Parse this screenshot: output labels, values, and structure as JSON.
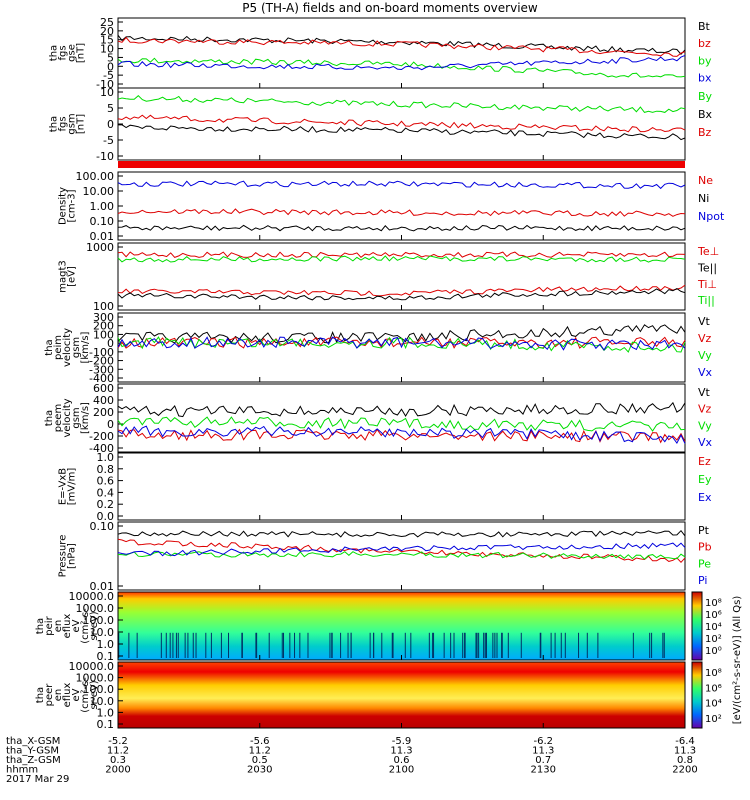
{
  "title": "P5 (TH-A) fields and on-board moments overview",
  "colors": {
    "black": "#000000",
    "red": "#dd0000",
    "green": "#00dd00",
    "blue": "#0000dd"
  },
  "chart_data": [
    {
      "type": "line",
      "panel": "fgs-gse",
      "ylabel": [
        "tha",
        "fgs",
        "gse",
        "[nT]"
      ],
      "yticks": [
        "25",
        "20",
        "15",
        "10",
        "5",
        "0",
        "-5",
        "-10"
      ],
      "ylim": [
        -10,
        25
      ],
      "series": [
        {
          "name": "Bt",
          "color": "black",
          "level": [
            15,
            13,
            8
          ]
        },
        {
          "name": "bz",
          "color": "red",
          "level": [
            14,
            12,
            7
          ]
        },
        {
          "name": "by",
          "color": "green",
          "level": [
            4,
            2,
            -5
          ]
        },
        {
          "name": "bx",
          "color": "blue",
          "level": [
            2,
            0,
            5
          ]
        }
      ]
    },
    {
      "type": "line",
      "panel": "fgs-gsm",
      "ylabel": [
        "tha",
        "fgs",
        "gsm",
        "[nT]"
      ],
      "yticks": [
        "10",
        "5",
        "0",
        "-5",
        "-10"
      ],
      "ylim": [
        -12,
        10
      ],
      "series": [
        {
          "name": "By",
          "color": "green",
          "level": [
            7,
            5,
            3
          ]
        },
        {
          "name": "Bx",
          "color": "black",
          "level": [
            -2,
            -3,
            -5
          ]
        },
        {
          "name": "Bz",
          "color": "red",
          "level": [
            1,
            -1,
            -3
          ]
        }
      ]
    },
    {
      "type": "line",
      "panel": "density",
      "ylabel": [
        "Density",
        "[cm-3]"
      ],
      "yticks": [
        "100.00",
        "10.00",
        "1.00",
        "0.10",
        "0.01"
      ],
      "ylim": [
        0.01,
        100
      ],
      "log": true,
      "series": [
        {
          "name": "Ne",
          "color": "red",
          "level": [
            0.5,
            0.4,
            0.35
          ]
        },
        {
          "name": "Ni",
          "color": "black",
          "level": [
            0.05,
            0.05,
            0.05
          ]
        },
        {
          "name": "Npot",
          "color": "blue",
          "level": [
            20,
            20,
            15
          ]
        }
      ]
    },
    {
      "type": "line",
      "panel": "temperature",
      "ylabel": [
        "magt3",
        "[eV]"
      ],
      "yticks": [
        "1000",
        "100"
      ],
      "ylim": [
        30,
        8000
      ],
      "log": true,
      "series": [
        {
          "name": "Te⊥",
          "color": "red",
          "level": [
            140,
            120,
            200
          ]
        },
        {
          "name": "Te||",
          "color": "black",
          "level": [
            100,
            80,
            150
          ]
        },
        {
          "name": "Ti⊥",
          "color": "red",
          "level": [
            3000,
            3000,
            3000
          ]
        },
        {
          "name": "Ti||",
          "color": "green",
          "level": [
            2000,
            2200,
            2000
          ]
        }
      ]
    },
    {
      "type": "line",
      "panel": "peim-velocity",
      "ylabel": [
        "tha",
        "peim",
        "velocity",
        "gsm",
        "[km/s]"
      ],
      "yticks": [
        "300",
        "200",
        "100",
        "0",
        "-100",
        "-200",
        "-300",
        "-400"
      ],
      "ylim": [
        -400,
        300
      ],
      "series": [
        {
          "name": "Vt",
          "color": "black",
          "level": [
            50,
            50,
            150
          ]
        },
        {
          "name": "Vz",
          "color": "red",
          "level": [
            0,
            0,
            0
          ]
        },
        {
          "name": "Vy",
          "color": "green",
          "level": [
            0,
            0,
            -50
          ]
        },
        {
          "name": "Vx",
          "color": "blue",
          "level": [
            0,
            0,
            -30
          ]
        }
      ]
    },
    {
      "type": "line",
      "panel": "peem-velocity",
      "ylabel": [
        "tha",
        "peem",
        "velocity",
        "gsm",
        "[km/s]"
      ],
      "yticks": [
        "600",
        "400",
        "200",
        "0",
        "-200",
        "-400"
      ],
      "ylim": [
        -400,
        600
      ],
      "series": [
        {
          "name": "Vt",
          "color": "black",
          "level": [
            200,
            200,
            250
          ]
        },
        {
          "name": "Vz",
          "color": "red",
          "level": [
            -150,
            -150,
            -180
          ]
        },
        {
          "name": "Vy",
          "color": "green",
          "level": [
            50,
            20,
            -30
          ]
        },
        {
          "name": "Vx",
          "color": "blue",
          "level": [
            -100,
            -100,
            -200
          ]
        }
      ]
    },
    {
      "type": "line",
      "panel": "efield",
      "ylabel": [
        "E=-VxB",
        "[mV/m]"
      ],
      "yticks": [
        "1.0",
        "0.8",
        "0.6",
        "0.4",
        "0.2",
        "0.0"
      ],
      "ylim": [
        0,
        1
      ],
      "series": [
        {
          "name": "Ez",
          "color": "red",
          "level": []
        },
        {
          "name": "Ey",
          "color": "green",
          "level": []
        },
        {
          "name": "Ex",
          "color": "blue",
          "level": []
        }
      ]
    },
    {
      "type": "line",
      "panel": "pressure",
      "ylabel": [
        "Pressure",
        "[nPa]"
      ],
      "yticks": [
        "0.10",
        "0.01"
      ],
      "ylim": [
        0.008,
        0.5
      ],
      "log": true,
      "series": [
        {
          "name": "Pt",
          "color": "black",
          "level": [
            0.25,
            0.23,
            0.25
          ]
        },
        {
          "name": "Pb",
          "color": "red",
          "level": [
            0.15,
            0.08,
            0.05
          ]
        },
        {
          "name": "Pe",
          "color": "green",
          "level": [
            0.07,
            0.07,
            0.06
          ]
        },
        {
          "name": "Pi",
          "color": "blue",
          "level": [
            0.07,
            0.1,
            0.12
          ]
        }
      ]
    },
    {
      "type": "heatmap",
      "panel": "peir-spectrogram",
      "ylabel": [
        "tha",
        "peir",
        "en",
        "eflux",
        "eV",
        "(cm²-s-",
        "sr-eV)"
      ],
      "yticks": [
        "10000.0",
        "1000.0",
        "100.0",
        "10.0",
        "1.0",
        "0.1"
      ]
    },
    {
      "type": "heatmap",
      "panel": "peer-spectrogram",
      "ylabel": [
        "tha",
        "peer",
        "en",
        "eflux",
        "eV",
        "(cm²-s-",
        "sr-eV)"
      ],
      "yticks": [
        "10000.0",
        "1000.0",
        "100.0",
        "10.0",
        "1.0",
        "0.1"
      ]
    }
  ],
  "colorbar": {
    "ticks_top": [
      "10⁸",
      "10⁶",
      "10⁴",
      "10²",
      "10⁰"
    ],
    "ticks_bottom": [
      "10⁸",
      "10⁶",
      "10⁴",
      "10²"
    ],
    "label": "[eV/(cm²-s-sr-eV)] (All Qs)"
  },
  "ephemeris": {
    "labels": [
      "tha_X-GSM",
      "tha_Y-GSM",
      "tha_Z-GSM",
      "hhmm",
      "2017 Mar 29"
    ],
    "columns": [
      [
        "-5.2",
        "11.2",
        "0.3",
        "2000"
      ],
      [
        "-5.6",
        "11.2",
        "0.5",
        "2030"
      ],
      [
        "-5.9",
        "11.3",
        "0.6",
        "2100"
      ],
      [
        "-6.2",
        "11.3",
        "0.7",
        "2130"
      ],
      [
        "-6.4",
        "11.3",
        "0.8",
        "2200"
      ]
    ]
  }
}
